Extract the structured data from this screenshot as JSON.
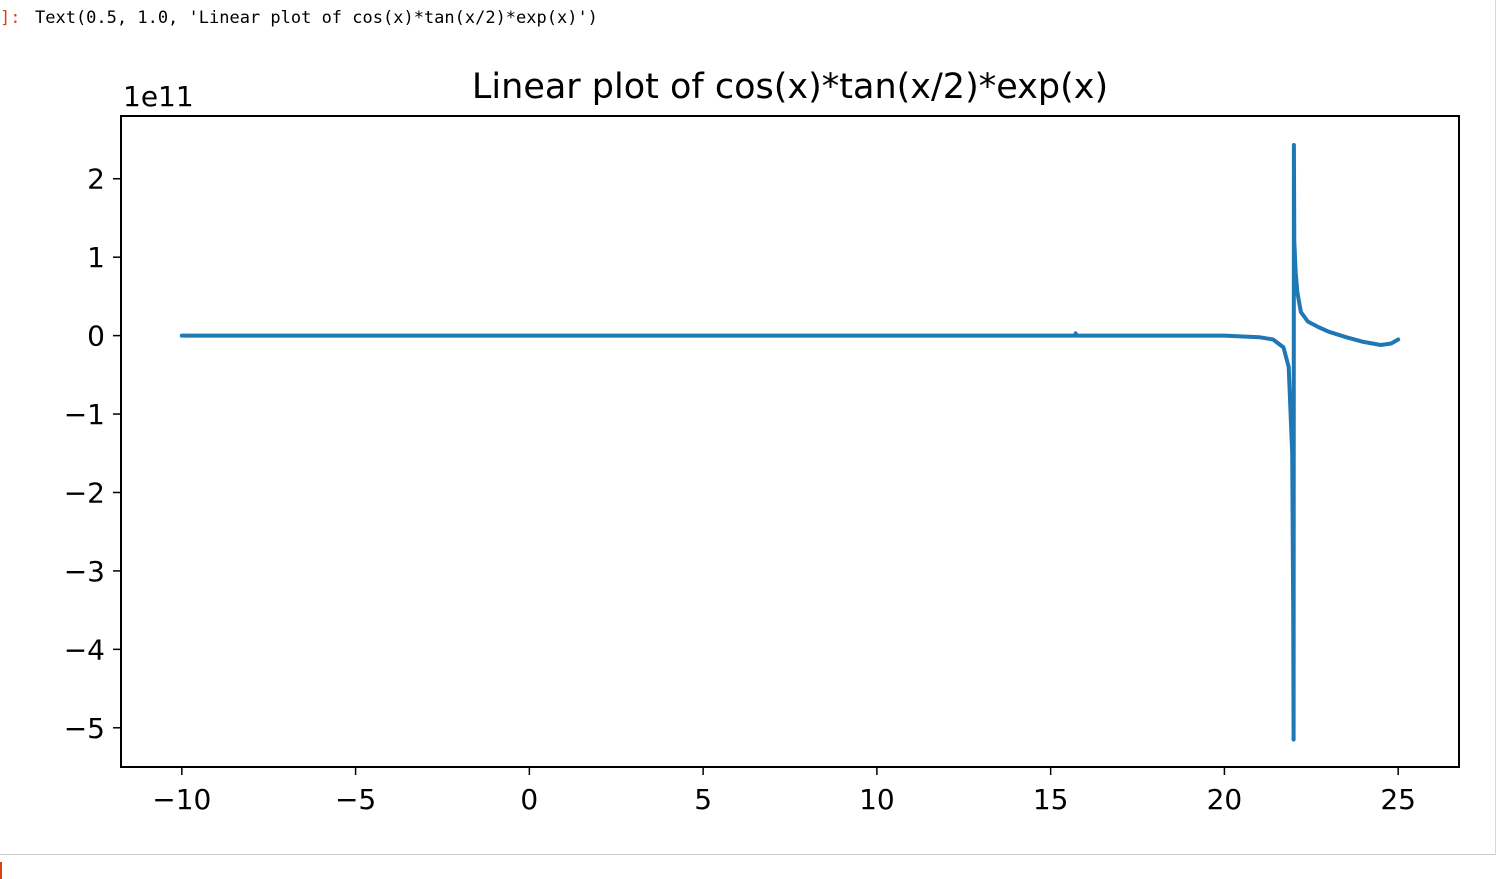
{
  "notebook": {
    "output_prompt": "]:",
    "output_text": "Text(0.5, 1.0, 'Linear plot of cos(x)*tan(x/2)*exp(x)')"
  },
  "chart_data": {
    "type": "line",
    "title": "Linear plot of cos(x)*tan(x/2)*exp(x)",
    "xlabel": "",
    "ylabel": "",
    "y_offset_label": "1e11",
    "xlim": [
      -11.75,
      26.75
    ],
    "ylim": [
      -5.5,
      2.8
    ],
    "x_ticks": [
      -10,
      -5,
      0,
      5,
      10,
      15,
      20,
      25
    ],
    "x_tick_labels": [
      "−10",
      "−5",
      "0",
      "5",
      "10",
      "15",
      "20",
      "25"
    ],
    "y_ticks": [
      2,
      1,
      0,
      -1,
      -2,
      -3,
      -4,
      -5
    ],
    "y_tick_labels": [
      "2",
      "1",
      "0",
      "−1",
      "−2",
      "−3",
      "−4",
      "−5"
    ],
    "grid": false,
    "series": [
      {
        "color": "#1f77b4",
        "x": [
          -10,
          15.7,
          15.72,
          15.74,
          20.0,
          21.0,
          21.4,
          21.7,
          21.85,
          21.95,
          21.98,
          21.99,
          22.0,
          22.01,
          22.05,
          22.1,
          22.2,
          22.4,
          22.7,
          23.0,
          23.5,
          24.0,
          24.5,
          24.8,
          25.0
        ],
        "y": [
          0,
          0,
          0.03,
          0,
          0,
          -0.02,
          -0.05,
          -0.15,
          -0.4,
          -1.5,
          -3.5,
          -5.15,
          2.43,
          1.2,
          0.8,
          0.55,
          0.3,
          0.18,
          0.11,
          0.05,
          -0.02,
          -0.08,
          -0.12,
          -0.1,
          -0.05
        ]
      }
    ]
  }
}
